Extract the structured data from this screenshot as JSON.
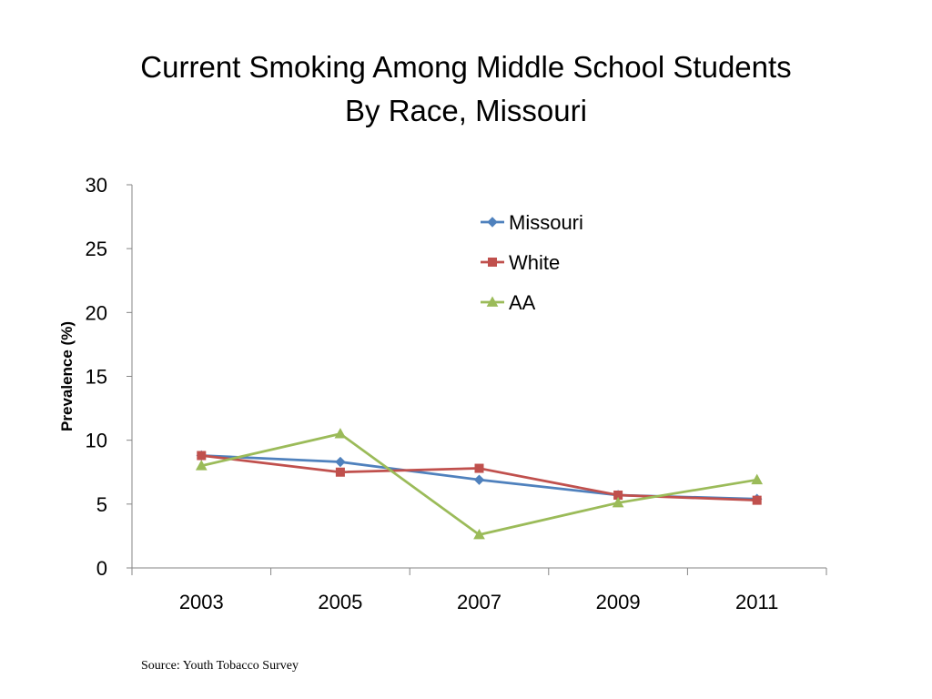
{
  "slide": {
    "title_line1": "Current Smoking Among Middle School Students",
    "title_line2": "By Race, Missouri",
    "source": "Source: Youth Tobacco Survey"
  },
  "chart_data": {
    "type": "line",
    "title": "Current Smoking Among Middle School Students By Race, Missouri",
    "xlabel": "",
    "ylabel": "Prevalence (%)",
    "categories": [
      "2003",
      "2005",
      "2007",
      "2009",
      "2011"
    ],
    "ylim": [
      0,
      30
    ],
    "yticks": [
      0,
      5,
      10,
      15,
      20,
      25,
      30
    ],
    "grid": false,
    "legend_position": "top-right",
    "series": [
      {
        "name": "Missouri",
        "values": [
          8.8,
          8.3,
          6.9,
          5.7,
          5.4
        ],
        "color": "#4F81BD",
        "marker": "diamond"
      },
      {
        "name": "White",
        "values": [
          8.8,
          7.5,
          7.8,
          5.7,
          5.3
        ],
        "color": "#C0504D",
        "marker": "square"
      },
      {
        "name": "AA",
        "values": [
          8.0,
          10.5,
          2.6,
          5.1,
          6.9
        ],
        "color": "#9BBB59",
        "marker": "triangle"
      }
    ]
  }
}
